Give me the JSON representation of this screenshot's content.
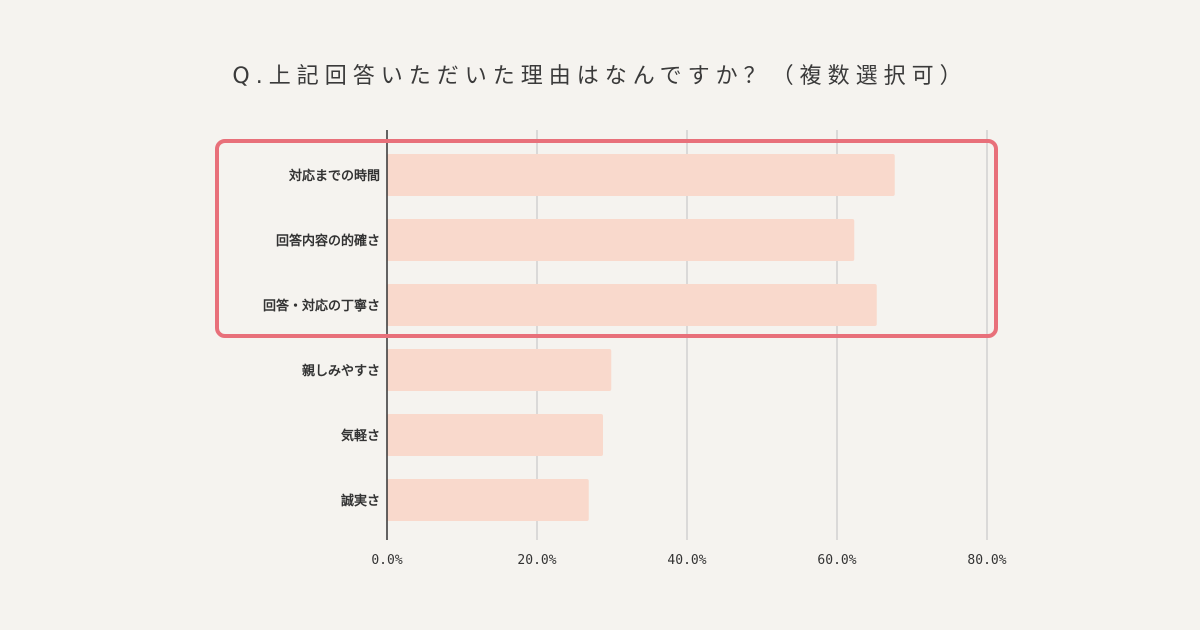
{
  "colors": {
    "background": "#f5f3ef",
    "bar": "#f9d9cc",
    "highlight": "#e8707a",
    "grid": "#c8c8c8",
    "axis": "#333333",
    "text": "#333333"
  },
  "chart_data": {
    "type": "bar",
    "orientation": "horizontal",
    "title": "Q.上記回答いただいた理由はなんですか？（複数選択可）",
    "categories": [
      "対応までの時間",
      "回答内容の的確さ",
      "回答・対応の丁寧さ",
      "親しみやすさ",
      "気軽さ",
      "誠実さ"
    ],
    "values": [
      67.7,
      62.3,
      65.3,
      29.9,
      28.8,
      26.9
    ],
    "xlim": [
      0,
      80
    ],
    "xticks": [
      0,
      20,
      40,
      60,
      80
    ],
    "xtick_labels": [
      "0.0%",
      "20.0%",
      "40.0%",
      "60.0%",
      "80.0%"
    ],
    "grid": true,
    "highlighted_categories": [
      "対応までの時間",
      "回答内容の的確さ",
      "回答・対応の丁寧さ"
    ]
  }
}
